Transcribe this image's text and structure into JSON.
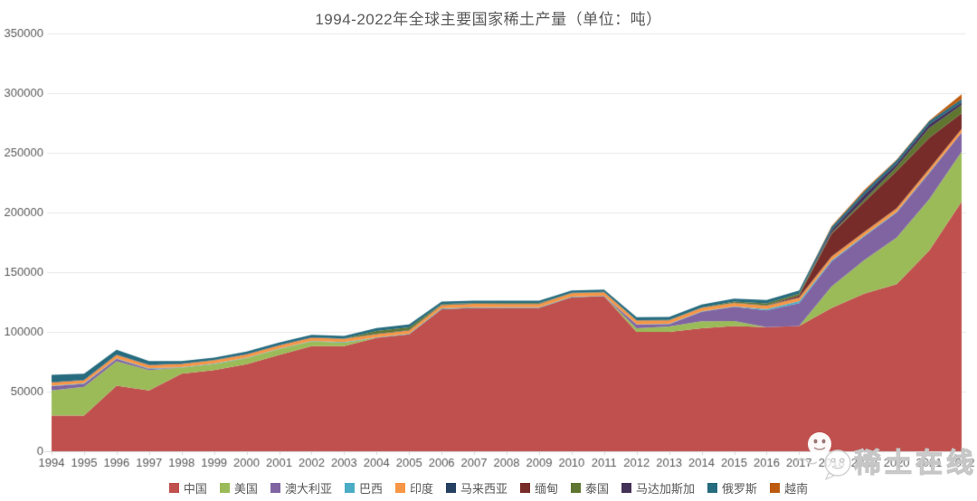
{
  "title": "1994-2022年全球主要国家稀土产量（单位：吨）",
  "watermark": {
    "text": "稀土在线"
  },
  "style": {
    "axis_text_color": "#595959",
    "gridline_color": "#e9e9e9",
    "axis_line_color": "#d6d6d6",
    "title_color": "#595959",
    "background": "#ffffff"
  },
  "chart_data": {
    "type": "area",
    "stacked": true,
    "title": "1994-2022年全球主要国家稀土产量（单位：吨）",
    "unit": "吨",
    "xlabel": "",
    "ylabel": "",
    "grid": true,
    "legend_position": "bottom",
    "ylim": [
      0,
      350000
    ],
    "yticks": [
      0,
      50000,
      100000,
      150000,
      200000,
      250000,
      300000,
      350000
    ],
    "x": [
      1994,
      1995,
      1996,
      1997,
      1998,
      1999,
      2000,
      2001,
      2002,
      2003,
      2004,
      2005,
      2006,
      2007,
      2008,
      2009,
      2010,
      2011,
      2012,
      2013,
      2014,
      2015,
      2016,
      2017,
      2018,
      2019,
      2020,
      2021,
      2022
    ],
    "series": [
      {
        "name": "中国",
        "color": "#c0504d",
        "values": [
          30000,
          30000,
          55000,
          51000,
          65000,
          68000,
          73000,
          80600,
          88000,
          88000,
          95000,
          98000,
          119000,
          120000,
          120000,
          120000,
          129000,
          130000,
          100000,
          100000,
          103000,
          105000,
          104000,
          105000,
          120000,
          132000,
          140000,
          168000,
          209000
        ]
      },
      {
        "name": "美国",
        "color": "#9bbb59",
        "values": [
          21000,
          24000,
          20400,
          17000,
          5000,
          5000,
          5000,
          5000,
          4000,
          3000,
          0,
          0,
          0,
          0,
          0,
          0,
          0,
          0,
          3000,
          4500,
          5900,
          4100,
          0,
          0,
          18000,
          28000,
          39000,
          43000,
          42000
        ]
      },
      {
        "name": "澳大利亚",
        "color": "#8064a2",
        "values": [
          3500,
          2500,
          2000,
          1000,
          0,
          0,
          0,
          0,
          0,
          0,
          0,
          0,
          0,
          0,
          0,
          0,
          0,
          0,
          3200,
          2000,
          8000,
          12000,
          14000,
          19000,
          21000,
          20000,
          21000,
          22000,
          16000
        ]
      },
      {
        "name": "巴西",
        "color": "#4bacc6",
        "values": [
          500,
          500,
          500,
          500,
          400,
          400,
          400,
          400,
          400,
          400,
          500,
          500,
          700,
          700,
          650,
          650,
          550,
          300,
          300,
          300,
          300,
          300,
          1100,
          1700,
          1100,
          700,
          600,
          500,
          100
        ]
      },
      {
        "name": "印度",
        "color": "#f79646",
        "values": [
          2500,
          2500,
          2700,
          2700,
          2700,
          2700,
          2700,
          2700,
          2700,
          2700,
          2700,
          2700,
          2700,
          2700,
          2700,
          2700,
          2800,
          2800,
          2900,
          2900,
          2900,
          2900,
          2900,
          2900,
          2900,
          2900,
          2900,
          2900,
          2900
        ]
      },
      {
        "name": "马来西亚",
        "color": "#254061",
        "values": [
          400,
          300,
          400,
          300,
          300,
          300,
          300,
          300,
          300,
          300,
          300,
          300,
          400,
          400,
          400,
          400,
          300,
          300,
          300,
          200,
          200,
          200,
          300,
          300,
          200,
          200,
          100,
          100,
          100
        ]
      },
      {
        "name": "缅甸",
        "color": "#772c2a",
        "values": [
          0,
          0,
          0,
          0,
          0,
          0,
          0,
          0,
          0,
          0,
          0,
          0,
          0,
          0,
          0,
          0,
          0,
          0,
          0,
          0,
          0,
          0,
          0,
          1500,
          19000,
          25000,
          31000,
          26000,
          13000
        ]
      },
      {
        "name": "泰国",
        "color": "#5f7530",
        "values": [
          100,
          100,
          100,
          100,
          100,
          100,
          100,
          100,
          100,
          100,
          2200,
          2200,
          500,
          400,
          400,
          400,
          100,
          100,
          100,
          100,
          100,
          800,
          1600,
          1600,
          1000,
          1900,
          3600,
          8200,
          7100
        ]
      },
      {
        "name": "马达加斯加",
        "color": "#433158",
        "values": [
          0,
          0,
          0,
          0,
          0,
          0,
          0,
          0,
          0,
          0,
          0,
          0,
          0,
          0,
          0,
          0,
          0,
          0,
          0,
          0,
          0,
          0,
          0,
          0,
          2000,
          4000,
          2800,
          3200,
          2000
        ]
      },
      {
        "name": "俄罗斯",
        "color": "#266b7e",
        "values": [
          6000,
          5000,
          4000,
          3000,
          2000,
          2000,
          2000,
          2000,
          2000,
          2000,
          2500,
          2500,
          2000,
          2000,
          2000,
          2000,
          2000,
          2000,
          2500,
          2500,
          2500,
          2500,
          2800,
          2600,
          2600,
          2700,
          2700,
          2600,
          2600
        ]
      },
      {
        "name": "越南",
        "color": "#bc5b0f",
        "values": [
          0,
          0,
          0,
          0,
          0,
          0,
          0,
          0,
          0,
          0,
          0,
          0,
          0,
          0,
          0,
          0,
          0,
          0,
          0,
          0,
          0,
          0,
          0,
          100,
          920,
          1300,
          700,
          400,
          4300
        ]
      }
    ]
  }
}
